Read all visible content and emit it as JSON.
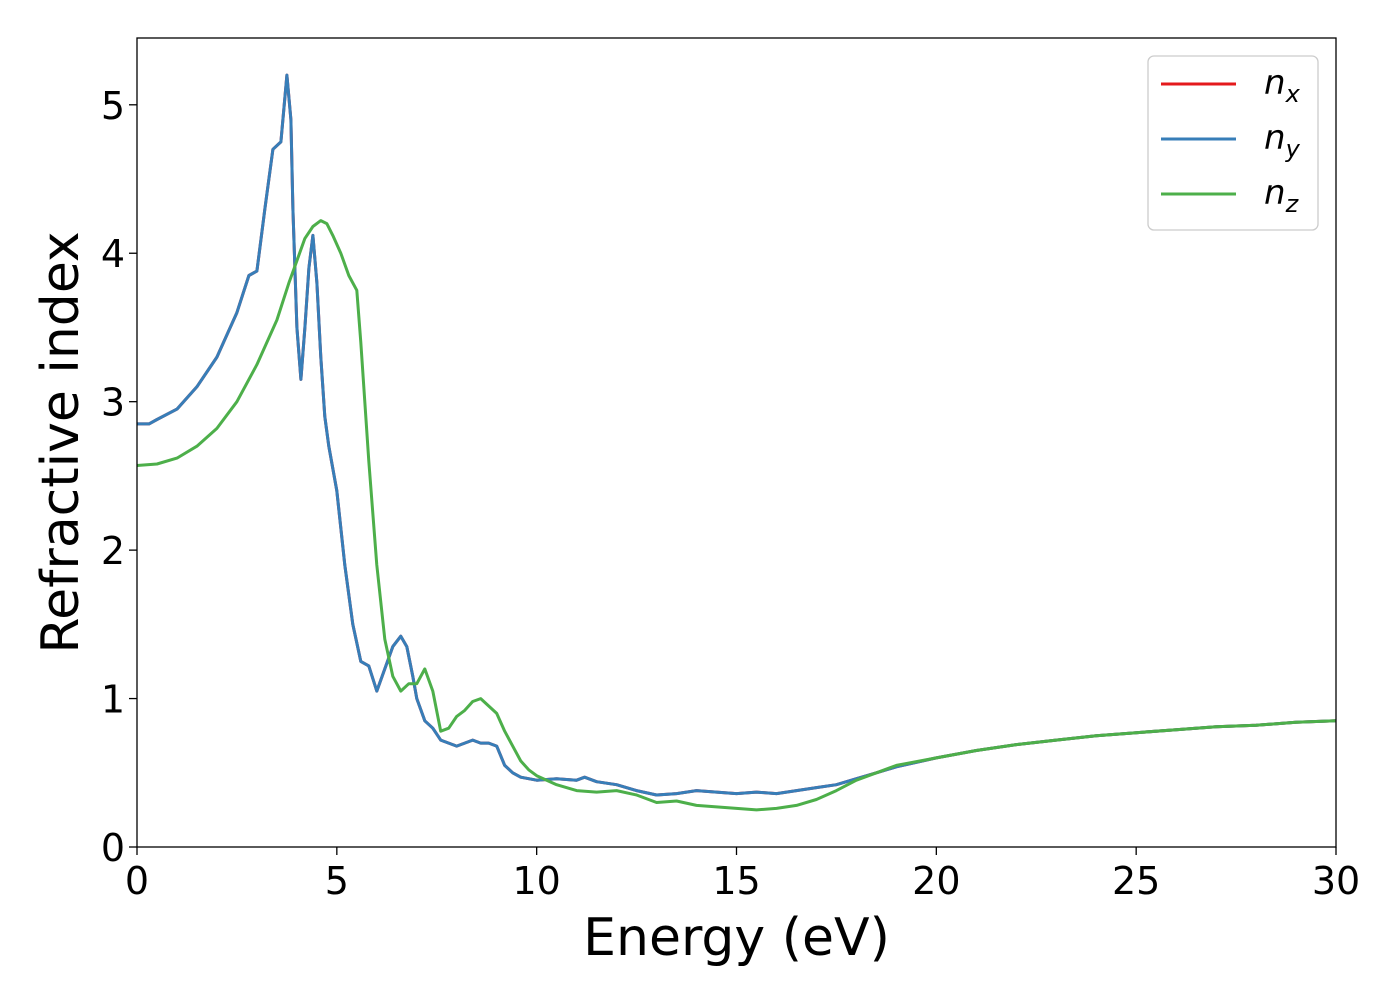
{
  "chart_data": {
    "type": "line",
    "title": "",
    "xlabel": "Energy (eV)",
    "ylabel": "Refractive index",
    "xlim": [
      0,
      30
    ],
    "ylim": [
      0,
      5.45
    ],
    "xticks": [
      0,
      5,
      10,
      15,
      20,
      25,
      30
    ],
    "yticks": [
      0,
      1,
      2,
      3,
      4,
      5
    ],
    "grid": false,
    "legend_position": "top-right",
    "series": [
      {
        "name": "n_x",
        "label_base": "n",
        "label_sub": "x",
        "color": "#e41a1c",
        "x": [
          0,
          0.3,
          0.5,
          1,
          1.5,
          2,
          2.5,
          2.8,
          3,
          3.2,
          3.4,
          3.6,
          3.75,
          3.85,
          3.9,
          4.0,
          4.1,
          4.2,
          4.3,
          4.4,
          4.5,
          4.6,
          4.7,
          4.8,
          5.0,
          5.2,
          5.4,
          5.6,
          5.8,
          6.0,
          6.2,
          6.4,
          6.6,
          6.75,
          6.9,
          7.0,
          7.2,
          7.4,
          7.6,
          7.8,
          8.0,
          8.2,
          8.4,
          8.6,
          8.8,
          9.0,
          9.2,
          9.4,
          9.6,
          9.8,
          10.0,
          10.5,
          11.0,
          11.2,
          11.5,
          12.0,
          12.5,
          13.0,
          13.5,
          14.0,
          14.5,
          15.0,
          15.5,
          16.0,
          16.5,
          17.0,
          17.5,
          18.0,
          18.5,
          19.0,
          20.0,
          21.0,
          22.0,
          23.0,
          24.0,
          25.0,
          26.0,
          27.0,
          28.0,
          29.0,
          30.0
        ],
        "values": [
          2.85,
          2.85,
          2.88,
          2.95,
          3.1,
          3.3,
          3.6,
          3.85,
          3.88,
          4.3,
          4.7,
          4.75,
          5.2,
          4.9,
          4.3,
          3.5,
          3.15,
          3.5,
          3.9,
          4.12,
          3.8,
          3.3,
          2.9,
          2.7,
          2.4,
          1.9,
          1.5,
          1.25,
          1.22,
          1.05,
          1.2,
          1.35,
          1.42,
          1.35,
          1.15,
          1.0,
          0.85,
          0.8,
          0.72,
          0.7,
          0.68,
          0.7,
          0.72,
          0.7,
          0.7,
          0.68,
          0.55,
          0.5,
          0.47,
          0.46,
          0.45,
          0.46,
          0.45,
          0.47,
          0.44,
          0.42,
          0.38,
          0.35,
          0.36,
          0.38,
          0.37,
          0.36,
          0.37,
          0.36,
          0.38,
          0.4,
          0.42,
          0.46,
          0.5,
          0.54,
          0.6,
          0.65,
          0.69,
          0.72,
          0.75,
          0.77,
          0.79,
          0.81,
          0.82,
          0.84,
          0.85
        ]
      },
      {
        "name": "n_y",
        "label_base": "n",
        "label_sub": "y",
        "color": "#377eb8",
        "x": [
          0,
          0.3,
          0.5,
          1,
          1.5,
          2,
          2.5,
          2.8,
          3,
          3.2,
          3.4,
          3.6,
          3.75,
          3.85,
          3.9,
          4.0,
          4.1,
          4.2,
          4.3,
          4.4,
          4.5,
          4.6,
          4.7,
          4.8,
          5.0,
          5.2,
          5.4,
          5.6,
          5.8,
          6.0,
          6.2,
          6.4,
          6.6,
          6.75,
          6.9,
          7.0,
          7.2,
          7.4,
          7.6,
          7.8,
          8.0,
          8.2,
          8.4,
          8.6,
          8.8,
          9.0,
          9.2,
          9.4,
          9.6,
          9.8,
          10.0,
          10.5,
          11.0,
          11.2,
          11.5,
          12.0,
          12.5,
          13.0,
          13.5,
          14.0,
          14.5,
          15.0,
          15.5,
          16.0,
          16.5,
          17.0,
          17.5,
          18.0,
          18.5,
          19.0,
          20.0,
          21.0,
          22.0,
          23.0,
          24.0,
          25.0,
          26.0,
          27.0,
          28.0,
          29.0,
          30.0
        ],
        "values": [
          2.85,
          2.85,
          2.88,
          2.95,
          3.1,
          3.3,
          3.6,
          3.85,
          3.88,
          4.3,
          4.7,
          4.75,
          5.2,
          4.9,
          4.3,
          3.5,
          3.15,
          3.5,
          3.9,
          4.12,
          3.8,
          3.3,
          2.9,
          2.7,
          2.4,
          1.9,
          1.5,
          1.25,
          1.22,
          1.05,
          1.2,
          1.35,
          1.42,
          1.35,
          1.15,
          1.0,
          0.85,
          0.8,
          0.72,
          0.7,
          0.68,
          0.7,
          0.72,
          0.7,
          0.7,
          0.68,
          0.55,
          0.5,
          0.47,
          0.46,
          0.45,
          0.46,
          0.45,
          0.47,
          0.44,
          0.42,
          0.38,
          0.35,
          0.36,
          0.38,
          0.37,
          0.36,
          0.37,
          0.36,
          0.38,
          0.4,
          0.42,
          0.46,
          0.5,
          0.54,
          0.6,
          0.65,
          0.69,
          0.72,
          0.75,
          0.77,
          0.79,
          0.81,
          0.82,
          0.84,
          0.85
        ]
      },
      {
        "name": "n_z",
        "label_base": "n",
        "label_sub": "z",
        "color": "#4daf4a",
        "x": [
          0,
          0.5,
          1,
          1.5,
          2,
          2.5,
          3,
          3.5,
          3.8,
          4.0,
          4.2,
          4.4,
          4.6,
          4.75,
          4.9,
          5.1,
          5.3,
          5.5,
          5.6,
          5.8,
          6.0,
          6.2,
          6.4,
          6.6,
          6.8,
          7.0,
          7.2,
          7.4,
          7.6,
          7.8,
          8.0,
          8.2,
          8.4,
          8.6,
          8.8,
          9.0,
          9.2,
          9.4,
          9.6,
          9.8,
          10.0,
          10.5,
          11.0,
          11.5,
          12.0,
          12.5,
          13.0,
          13.5,
          14.0,
          14.5,
          15.0,
          15.5,
          16.0,
          16.5,
          17.0,
          17.5,
          18.0,
          18.5,
          19.0,
          20.0,
          21.0,
          22.0,
          23.0,
          24.0,
          25.0,
          26.0,
          27.0,
          28.0,
          29.0,
          30.0
        ],
        "values": [
          2.57,
          2.58,
          2.62,
          2.7,
          2.82,
          3.0,
          3.25,
          3.55,
          3.8,
          3.95,
          4.1,
          4.18,
          4.22,
          4.2,
          4.12,
          4.0,
          3.85,
          3.75,
          3.4,
          2.6,
          1.9,
          1.4,
          1.15,
          1.05,
          1.1,
          1.1,
          1.2,
          1.05,
          0.78,
          0.8,
          0.88,
          0.92,
          0.98,
          1.0,
          0.95,
          0.9,
          0.78,
          0.68,
          0.58,
          0.52,
          0.48,
          0.42,
          0.38,
          0.37,
          0.38,
          0.35,
          0.3,
          0.31,
          0.28,
          0.27,
          0.26,
          0.25,
          0.26,
          0.28,
          0.32,
          0.38,
          0.45,
          0.5,
          0.55,
          0.6,
          0.65,
          0.69,
          0.72,
          0.75,
          0.77,
          0.79,
          0.81,
          0.82,
          0.84,
          0.85
        ]
      }
    ]
  }
}
